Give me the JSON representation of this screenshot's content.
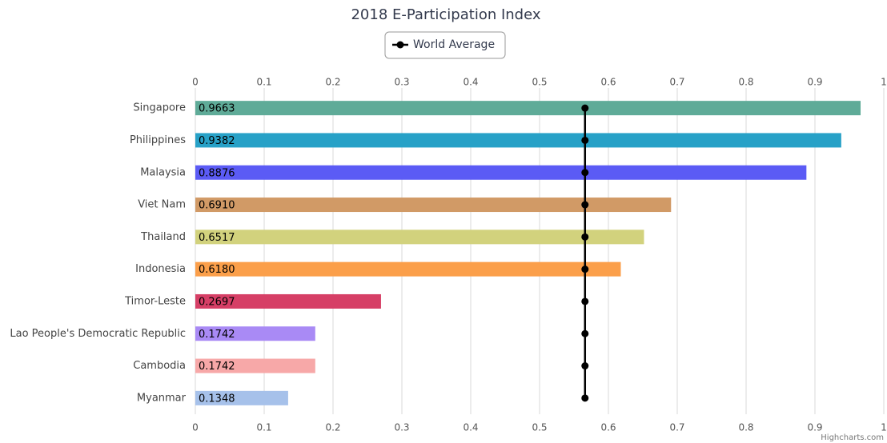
{
  "chart_data": {
    "type": "bar",
    "orientation": "horizontal",
    "title": "2018 E-Participation Index",
    "categories": [
      "Singapore",
      "Philippines",
      "Malaysia",
      "Viet Nam",
      "Thailand",
      "Indonesia",
      "Timor-Leste",
      "Lao People's Democratic Republic",
      "Cambodia",
      "Myanmar"
    ],
    "values": [
      0.9663,
      0.9382,
      0.8876,
      0.691,
      0.6517,
      0.618,
      0.2697,
      0.1742,
      0.1742,
      0.1348
    ],
    "value_labels": [
      "0.9663",
      "0.9382",
      "0.8876",
      "0.6910",
      "0.6517",
      "0.6180",
      "0.2697",
      "0.1742",
      "0.1742",
      "0.1348"
    ],
    "colors": [
      "#5fab98",
      "#27a1c7",
      "#5b5bf5",
      "#d19a66",
      "#d2d27d",
      "#fb9f4a",
      "#d63f66",
      "#a98af5",
      "#f7a8a8",
      "#a6c1ea"
    ],
    "series": [
      {
        "name": "World Average",
        "color": "#000000",
        "values": [
          0.566,
          0.566,
          0.566,
          0.566,
          0.566,
          0.566,
          0.566,
          0.566,
          0.566,
          0.566
        ]
      }
    ],
    "xlim": [
      0,
      1
    ],
    "xticks": [
      0,
      0.1,
      0.2,
      0.3,
      0.4,
      0.5,
      0.6,
      0.7,
      0.8,
      0.9,
      1
    ],
    "grid": true,
    "legend": "top",
    "credits": "Highcharts.com"
  }
}
